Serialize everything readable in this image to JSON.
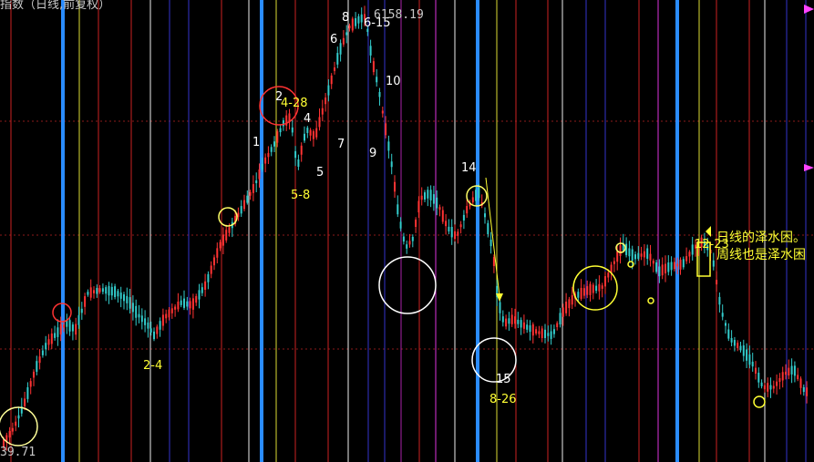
{
  "header": {
    "title": "指数（日线,前复权）"
  },
  "price_labels": {
    "high": "6158.19",
    "low": "39.71"
  },
  "chart_data": {
    "type": "candlestick",
    "title": "指数（日线,前复权）",
    "high_label": "6158.19",
    "low_label": "39.71",
    "wave_labels": [
      {
        "text": "1",
        "color": "#ffffff"
      },
      {
        "text": "2",
        "color": "#ffffff"
      },
      {
        "text": "4-28",
        "color": "#ffff33"
      },
      {
        "text": "4",
        "color": "#ffffff"
      },
      {
        "text": "5",
        "color": "#ffffff"
      },
      {
        "text": "5-8",
        "color": "#ffff33"
      },
      {
        "text": "6",
        "color": "#ffffff"
      },
      {
        "text": "7",
        "color": "#ffffff"
      },
      {
        "text": "8",
        "color": "#ffffff"
      },
      {
        "text": "6-15",
        "color": "#ffffff"
      },
      {
        "text": "9",
        "color": "#ffffff"
      },
      {
        "text": "10",
        "color": "#ffffff"
      },
      {
        "text": "14",
        "color": "#ffffff"
      },
      {
        "text": "15",
        "color": "#ffffff"
      },
      {
        "text": "8-26",
        "color": "#ffff33"
      },
      {
        "text": "2-4",
        "color": "#ffff33"
      },
      {
        "text": "12-23",
        "color": "#ffff33"
      }
    ],
    "annotations": [
      "日线的泽水困。",
      "周线也是泽水困"
    ],
    "colors": {
      "up": "#ff3333",
      "down": "#33cccc",
      "note": "#ffff33",
      "time_blue": "#2a8cff"
    }
  }
}
